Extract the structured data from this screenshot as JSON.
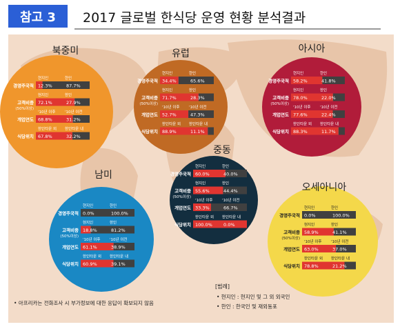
{
  "header": {
    "badge": "참고 3",
    "title": "2017 글로벌 한식당 운영 현황 분석결과"
  },
  "colors": {
    "badge_bg": "#2b5fd6",
    "map_bg": "#f3dcc9",
    "land": "#e8c5a9",
    "bar_red": "#e03530",
    "bar_dark": "#404040",
    "bar_gray": "#9a9a9a"
  },
  "footnote": "• 아프리카는 전화조사 시 부가정보에 대한 응답이 확보되지 않음",
  "legend": {
    "title": "[범례]",
    "items": [
      "• 현지인 : 현지인 및 그 외 외국인",
      "• 한인 : 한국인 및 재외동포"
    ]
  },
  "chart_data": {
    "type": "bar",
    "title": "2017 글로벌 한식당 운영 현황 분석결과",
    "row_labels": [
      "경영주국적",
      "고객비중",
      "개업연도",
      "식당위치"
    ],
    "row_sublabels": [
      "",
      "(50%이상)",
      "",
      ""
    ],
    "row_headers": [
      [
        "현지인",
        "한인"
      ],
      [
        "현지인",
        "한인"
      ],
      [
        "'10년 이후",
        "'10년 이전"
      ],
      [
        "한인타운 외",
        "한인타운 내"
      ]
    ],
    "regions": [
      {
        "name": "북중미",
        "color": "#f0962c",
        "values": [
          [
            12.3,
            87.7
          ],
          [
            72.1,
            27.9
          ],
          [
            68.8,
            31.2
          ],
          [
            67.8,
            32.2
          ]
        ]
      },
      {
        "name": "유럽",
        "color": "#c06a24",
        "values": [
          [
            34.4,
            65.6
          ],
          [
            71.7,
            28.3
          ],
          [
            52.7,
            47.3
          ],
          [
            88.9,
            11.1
          ]
        ]
      },
      {
        "name": "아시아",
        "color": "#b11c3a",
        "values": [
          [
            58.2,
            41.8
          ],
          [
            78.0,
            22.0
          ],
          [
            77.6,
            22.4
          ],
          [
            88.3,
            11.7
          ]
        ]
      },
      {
        "name": "중동",
        "color": "#132e3f",
        "values": [
          [
            60.0,
            40.0
          ],
          [
            55.6,
            44.4
          ],
          [
            33.3,
            66.7
          ],
          [
            100.0,
            0.0
          ]
        ]
      },
      {
        "name": "남미",
        "color": "#1a88c4",
        "values": [
          [
            0.0,
            100.0
          ],
          [
            18.8,
            81.2
          ],
          [
            61.1,
            38.9
          ],
          [
            60.9,
            39.1
          ]
        ]
      },
      {
        "name": "오세아니아",
        "color": "#f4d84a",
        "values": [
          [
            0.0,
            100.0
          ],
          [
            58.9,
            41.1
          ],
          [
            63.0,
            37.0
          ],
          [
            78.8,
            21.2
          ]
        ]
      }
    ]
  }
}
